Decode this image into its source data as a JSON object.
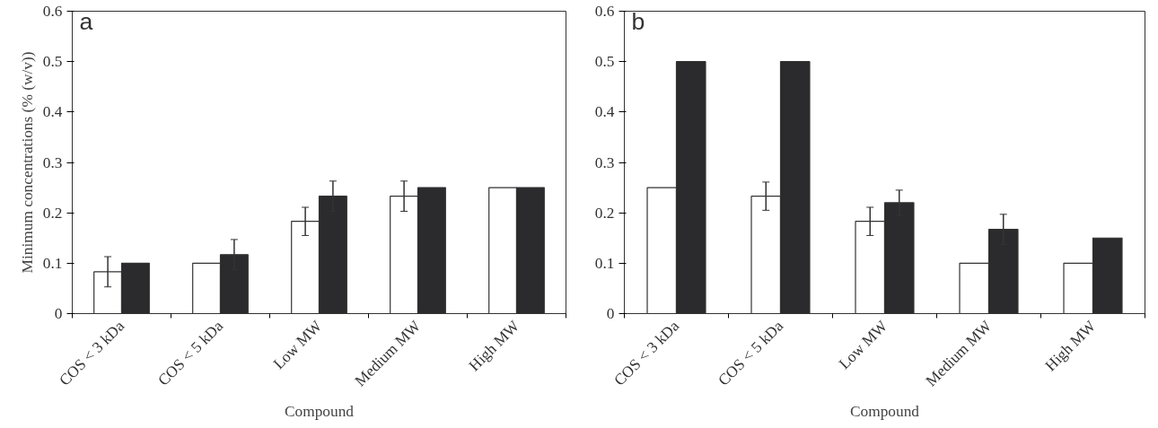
{
  "chart_data": [
    {
      "type": "bar",
      "xlabel": "Compound",
      "ylabel": "Minimum concentrations (% (w/v))",
      "annotations": [
        "a"
      ],
      "categories": [
        "COS < 3 kDa",
        "COS < 5 kDa",
        "Low MW",
        "Medium MW",
        "High MW"
      ],
      "series": [
        {
          "color": "#ffffff",
          "values": [
            0.083,
            0.1,
            0.183,
            0.233,
            0.25
          ],
          "errors": [
            0.03,
            null,
            0.028,
            0.03,
            null
          ]
        },
        {
          "color": "#2b2b2e",
          "values": [
            0.1,
            0.117,
            0.233,
            0.25,
            0.25
          ],
          "errors": [
            null,
            0.03,
            0.03,
            null,
            null
          ]
        }
      ],
      "ylim": [
        0,
        0.6
      ],
      "yticks": [
        0,
        0.1,
        0.2,
        0.3,
        0.4,
        0.5,
        0.6
      ],
      "grid": false
    },
    {
      "type": "bar",
      "xlabel": "Compound",
      "annotations": [
        "b"
      ],
      "categories": [
        "COS < 3 kDa",
        "COS < 5 kDa",
        "Low MW",
        "Medium MW",
        "High MW"
      ],
      "series": [
        {
          "color": "#ffffff",
          "values": [
            0.25,
            0.233,
            0.183,
            0.1,
            0.1
          ],
          "errors": [
            null,
            0.028,
            0.028,
            null,
            null
          ]
        },
        {
          "color": "#2b2b2e",
          "values": [
            0.5,
            0.5,
            0.22,
            0.167,
            0.15
          ],
          "errors": [
            null,
            null,
            0.025,
            0.03,
            null
          ]
        }
      ],
      "ylim": [
        0,
        0.6
      ],
      "yticks": [
        0,
        0.1,
        0.2,
        0.3,
        0.4,
        0.5,
        0.6
      ],
      "grid": false
    }
  ]
}
